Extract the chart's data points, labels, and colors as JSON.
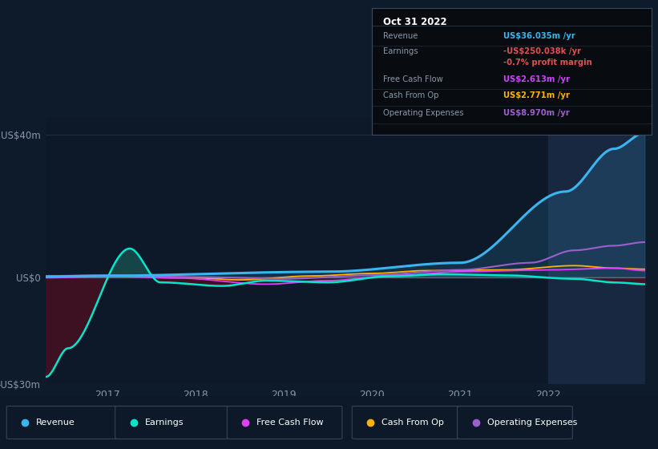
{
  "bg_color": "#0d1b2a",
  "chart_bg": "#0d1929",
  "highlight_bg": "#162236",
  "grid_color": "#2a3a4a",
  "text_color": "#8899aa",
  "title_color": "#ffffff",
  "ylim": [
    -30,
    45
  ],
  "yticks": [
    -30,
    0,
    40
  ],
  "ytick_labels": [
    "-US$30m",
    "US$0",
    "US$40m"
  ],
  "xtick_labels": [
    "2017",
    "2018",
    "2019",
    "2020",
    "2021",
    "2022"
  ],
  "series_colors": {
    "revenue": "#3ab5f0",
    "earnings": "#00e5cc",
    "earnings_fill_pos": "#1a5555",
    "earnings_fill_neg": "#4a1020",
    "free_cash_flow": "#e040fb",
    "cash_from_op": "#ffb300",
    "operating_expenses": "#9c5fce"
  },
  "legend_items": [
    {
      "label": "Revenue",
      "color": "#3ab5f0"
    },
    {
      "label": "Earnings",
      "color": "#00e5cc"
    },
    {
      "label": "Free Cash Flow",
      "color": "#e040fb"
    },
    {
      "label": "Cash From Op",
      "color": "#ffb300"
    },
    {
      "label": "Operating Expenses",
      "color": "#9c5fce"
    }
  ],
  "tooltip": {
    "date": "Oct 31 2022",
    "rows": [
      {
        "label": "Revenue",
        "value": "US$36.035m /yr",
        "label_color": "#8899aa",
        "value_color": "#3ab5f0"
      },
      {
        "label": "Earnings",
        "value": "-US$250.038k /yr",
        "label_color": "#8899aa",
        "value_color": "#e05050"
      },
      {
        "label": "",
        "value": "-0.7% profit margin",
        "label_color": "#8899aa",
        "value_color": "#e05050"
      },
      {
        "label": "Free Cash Flow",
        "value": "US$2.613m /yr",
        "label_color": "#8899aa",
        "value_color": "#cc44ff"
      },
      {
        "label": "Cash From Op",
        "value": "US$2.771m /yr",
        "label_color": "#8899aa",
        "value_color": "#ffb300"
      },
      {
        "label": "Operating Expenses",
        "value": "US$8.970m /yr",
        "label_color": "#8899aa",
        "value_color": "#9c5fce"
      }
    ]
  }
}
